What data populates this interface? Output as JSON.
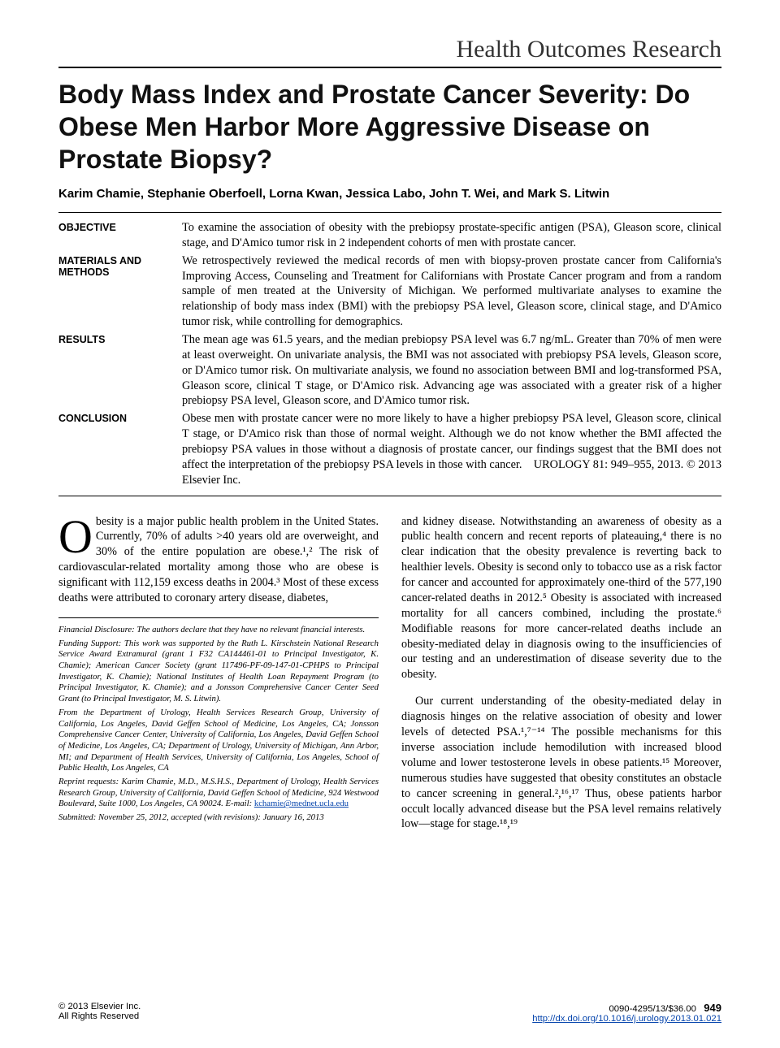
{
  "page": {
    "section_header": "Health Outcomes Research",
    "title": "Body Mass Index and Prostate Cancer Severity: Do Obese Men Harbor More Aggressive Disease on Prostate Biopsy?",
    "authors": "Karim Chamie, Stephanie Oberfoell, Lorna Kwan, Jessica Labo, John T. Wei, and Mark S. Litwin"
  },
  "abstract": {
    "objective_label": "OBJECTIVE",
    "objective": "To examine the association of obesity with the prebiopsy prostate-specific antigen (PSA), Gleason score, clinical stage, and D'Amico tumor risk in 2 independent cohorts of men with prostate cancer.",
    "methods_label": "MATERIALS AND METHODS",
    "methods": "We retrospectively reviewed the medical records of men with biopsy-proven prostate cancer from California's Improving Access, Counseling and Treatment for Californians with Prostate Cancer program and from a random sample of men treated at the University of Michigan. We performed multivariate analyses to examine the relationship of body mass index (BMI) with the prebiopsy PSA level, Gleason score, clinical stage, and D'Amico tumor risk, while controlling for demographics.",
    "results_label": "RESULTS",
    "results": "The mean age was 61.5 years, and the median prebiopsy PSA level was 6.7 ng/mL. Greater than 70% of men were at least overweight. On univariate analysis, the BMI was not associated with prebiopsy PSA levels, Gleason score, or D'Amico tumor risk. On multivariate analysis, we found no association between BMI and log-transformed PSA, Gleason score, clinical T stage, or D'Amico risk. Advancing age was associated with a greater risk of a higher prebiopsy PSA level, Gleason score, and D'Amico tumor risk.",
    "conclusion_label": "CONCLUSION",
    "conclusion": "Obese men with prostate cancer were no more likely to have a higher prebiopsy PSA level, Gleason score, clinical T stage, or D'Amico risk than those of normal weight. Although we do not know whether the BMI affected the prebiopsy PSA values in those without a diagnosis of prostate cancer, our findings suggest that the BMI does not affect the interpretation of the prebiopsy PSA levels in those with cancer. UROLOGY 81: 949–955, 2013. © 2013 Elsevier Inc."
  },
  "body": {
    "left_para": "besity is a major public health problem in the United States. Currently, 70% of adults >40 years old are overweight, and 30% of the entire population are obese.¹,² The risk of cardiovascular-related mortality among those who are obese is significant with 112,159 excess deaths in 2004.³ Most of these excess deaths were attributed to coronary artery disease, diabetes,",
    "right_para1": "and kidney disease. Notwithstanding an awareness of obesity as a public health concern and recent reports of plateauing,⁴ there is no clear indication that the obesity prevalence is reverting back to healthier levels. Obesity is second only to tobacco use as a risk factor for cancer and accounted for approximately one-third of the 577,190 cancer-related deaths in 2012.⁵ Obesity is associated with increased mortality for all cancers combined, including the prostate.⁶ Modifiable reasons for more cancer-related deaths include an obesity-mediated delay in diagnosis owing to the insufficiencies of our testing and an underestimation of disease severity due to the obesity.",
    "right_para2": "Our current understanding of the obesity-mediated delay in diagnosis hinges on the relative association of obesity and lower levels of detected PSA.¹,⁷⁻¹⁴ The possible mechanisms for this inverse association include hemodilution with increased blood volume and lower testosterone levels in obese patients.¹⁵ Moreover, numerous studies have suggested that obesity constitutes an obstacle to cancer screening in general.²,¹⁶,¹⁷ Thus, obese patients harbor occult locally advanced disease but the PSA level remains relatively low—stage for stage.¹⁸,¹⁹"
  },
  "footnotes": {
    "disclosure": "Financial Disclosure: The authors declare that they have no relevant financial interests.",
    "funding": "Funding Support: This work was supported by the Ruth L. Kirschstein National Research Service Award Extramural (grant 1 F32 CA144461-01 to Principal Investigator, K. Chamie); American Cancer Society (grant 117496-PF-09-147-01-CPHPS to Principal Investigator, K. Chamie); National Institutes of Health Loan Repayment Program (to Principal Investigator, K. Chamie); and a Jonsson Comprehensive Cancer Center Seed Grant (to Principal Investigator, M. S. Litwin).",
    "from": "From the Department of Urology, Health Services Research Group, University of California, Los Angeles, David Geffen School of Medicine, Los Angeles, CA; Jonsson Comprehensive Cancer Center, University of California, Los Angeles, David Geffen School of Medicine, Los Angeles, CA; Department of Urology, University of Michigan, Ann Arbor, MI; and Department of Health Services, University of California, Los Angeles, School of Public Health, Los Angeles, CA",
    "reprints": "Reprint requests: Karim Chamie, M.D., M.S.H.S., Department of Urology, Health Services Research Group, University of California, David Geffen School of Medicine, 924 Westwood Boulevard, Suite 1000, Los Angeles, CA 90024. E-mail: ",
    "email": "kchamie@mednet.ucla.edu",
    "submitted": "Submitted: November 25, 2012, accepted (with revisions): January 16, 2013"
  },
  "footer": {
    "copyright": "© 2013 Elsevier Inc.",
    "rights": "All Rights Reserved",
    "issn": "0090-4295/13/$36.00",
    "doi": "http://dx.doi.org/10.1016/j.urology.2013.01.021",
    "pagenum": "949"
  },
  "colors": {
    "text": "#000000",
    "link": "#0645AD",
    "bg": "#ffffff"
  }
}
